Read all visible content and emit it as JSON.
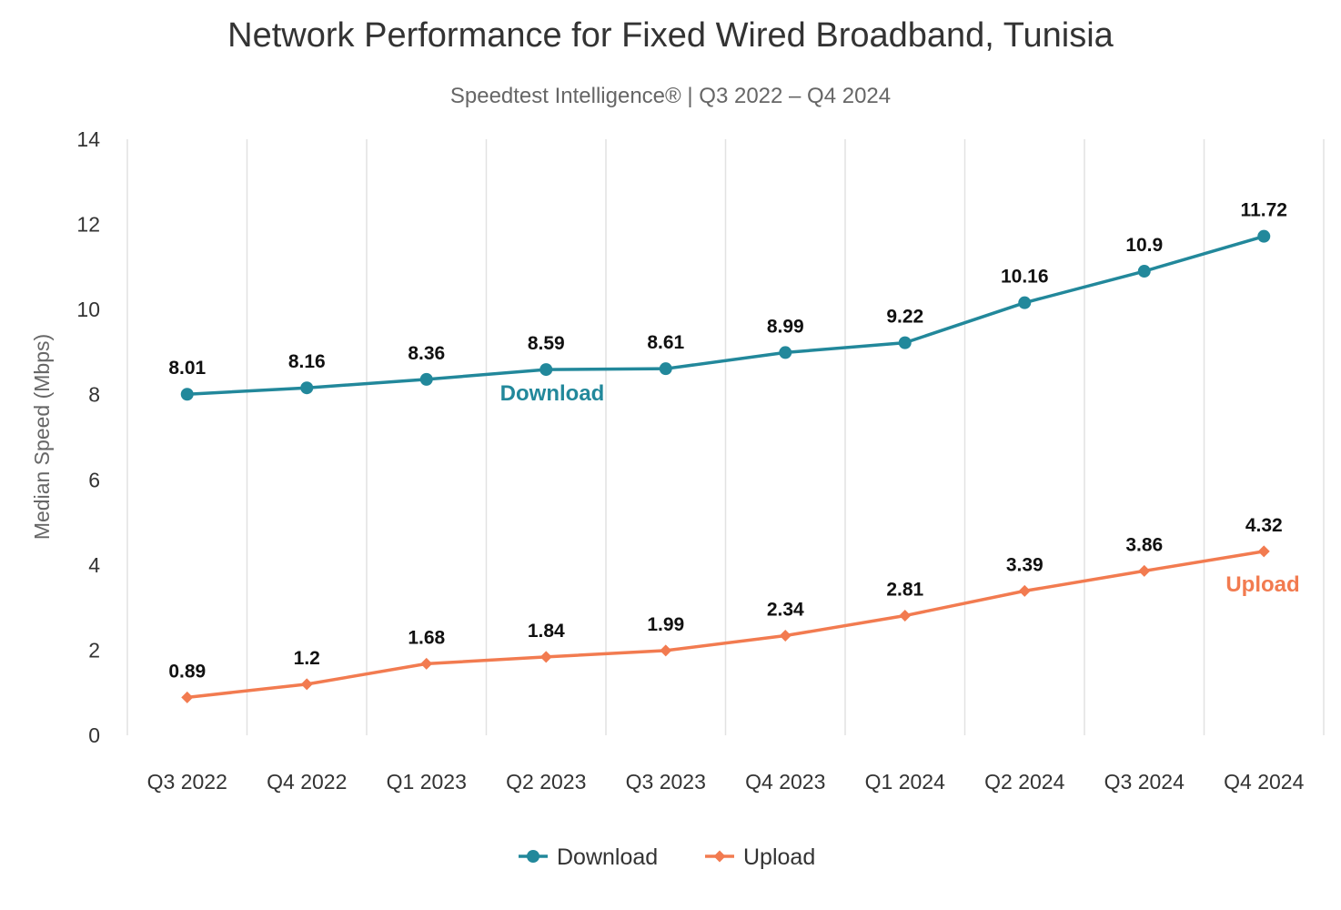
{
  "chart_data": {
    "type": "line",
    "title": "Network Performance for Fixed Wired Broadband, Tunisia",
    "subtitle": "Speedtest Intelligence® | Q3 2022 – Q4 2024",
    "xlabel": "",
    "ylabel": "Median Speed (Mbps)",
    "ylim": [
      0,
      14
    ],
    "yticks": [
      0,
      2,
      4,
      6,
      8,
      10,
      12,
      14
    ],
    "grid": "vertical",
    "legend_position": "bottom",
    "categories": [
      "Q3 2022",
      "Q4 2022",
      "Q1 2023",
      "Q2 2023",
      "Q3 2023",
      "Q4 2023",
      "Q1 2024",
      "Q2 2024",
      "Q3 2024",
      "Q4 2024"
    ],
    "series": [
      {
        "name": "Download",
        "color": "#22889b",
        "marker": "circle",
        "inline_label": "Download",
        "values": [
          8.01,
          8.16,
          8.36,
          8.59,
          8.61,
          8.99,
          9.22,
          10.16,
          10.9,
          11.72
        ]
      },
      {
        "name": "Upload",
        "color": "#f27b50",
        "marker": "diamond",
        "inline_label": "Upload",
        "values": [
          0.89,
          1.2,
          1.68,
          1.84,
          1.99,
          2.34,
          2.81,
          3.39,
          3.86,
          4.32
        ]
      }
    ]
  }
}
